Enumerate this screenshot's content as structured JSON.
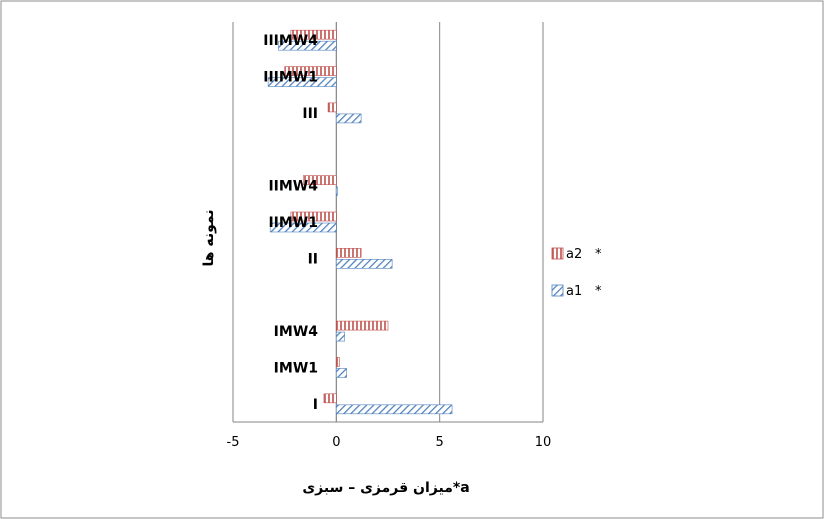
{
  "chart_data": {
    "type": "bar",
    "orientation": "horizontal",
    "categories": [
      "I",
      "IMW1",
      "IMW4",
      "",
      "II",
      "IIMW1",
      "IIMW4",
      "",
      "III",
      "IIIMW1",
      "IIIMW4"
    ],
    "series": [
      {
        "name": "a1",
        "values": [
          5.6,
          0.5,
          0.4,
          null,
          2.7,
          -3.2,
          0.05,
          null,
          1.2,
          -3.3,
          -2.8
        ],
        "color": "#4f81bd",
        "pattern": "diagonal-hatch"
      },
      {
        "name": "a2",
        "values": [
          -0.6,
          0.15,
          2.5,
          null,
          1.2,
          -2.2,
          -1.6,
          null,
          -0.4,
          -2.5,
          -2.2
        ],
        "color": "#c0504d",
        "pattern": "vertical-hatch"
      }
    ],
    "xlim": [
      -5,
      10
    ],
    "xticks": [
      -5,
      0,
      5,
      10
    ],
    "xtick_labels": [
      "-5",
      "0",
      "5",
      "10"
    ],
    "xlabel": "a*میزان قرمزی – سبزی",
    "ylabel": "نمونه ها",
    "legend": {
      "position": "right",
      "entries": [
        "a2",
        "a1"
      ],
      "marker": "*"
    },
    "grid": "vertical"
  }
}
